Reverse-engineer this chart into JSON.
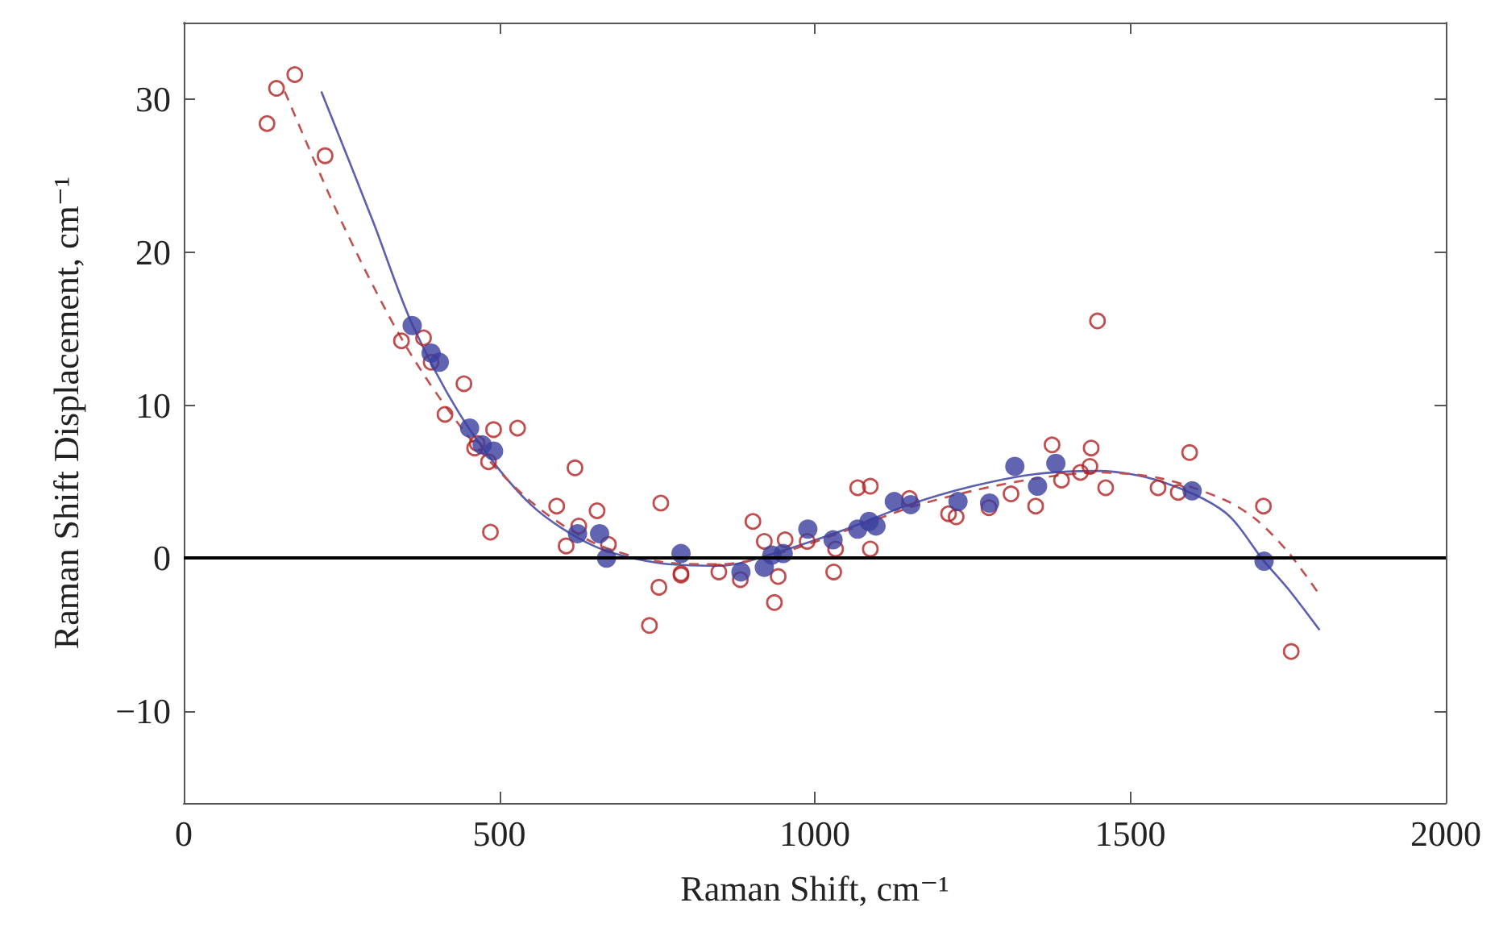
{
  "chart_data": {
    "type": "scatter",
    "xlabel": "Raman Shift, cm⁻¹",
    "ylabel": "Raman Shift Displacement, cm⁻¹",
    "xlim": [
      0,
      2000
    ],
    "xticks": [
      0,
      500,
      1000,
      1500,
      2000
    ],
    "ylim": [
      -16,
      35
    ],
    "yticks": [
      {
        "value": -10,
        "label": "−10"
      },
      0,
      10,
      20,
      30
    ],
    "grid": false,
    "ref_lines": [
      {
        "axis": "y",
        "value": 0,
        "color": "#000000",
        "line_style": "solid"
      }
    ],
    "series": [
      {
        "marker": "circle",
        "color": "#b22222",
        "x": [
          132,
          147,
          176,
          224,
          345,
          380,
          392,
          444,
          414,
          461,
          465,
          483,
          486,
          491,
          529,
          591,
          606,
          620,
          626,
          655,
          673,
          738,
          753,
          756,
          788,
          788,
          848,
          882,
          902,
          920,
          936,
          942,
          953,
          988,
          1030,
          1033,
          1068,
          1088,
          1088,
          1150,
          1212,
          1224,
          1276,
          1311,
          1350,
          1376,
          1391,
          1421,
          1438,
          1436,
          1448,
          1461,
          1544,
          1576,
          1594,
          1711,
          1755
        ],
        "values": [
          28.4,
          30.7,
          31.6,
          26.3,
          14.2,
          14.4,
          12.8,
          11.4,
          9.4,
          7.2,
          7.5,
          6.3,
          1.7,
          8.4,
          8.5,
          3.4,
          0.8,
          5.9,
          2.1,
          3.1,
          0.9,
          -4.4,
          -1.9,
          3.6,
          -1.0,
          -1.1,
          -0.9,
          -1.4,
          2.4,
          1.1,
          -2.9,
          -1.2,
          1.2,
          1.1,
          -0.9,
          0.6,
          4.6,
          4.7,
          0.6,
          3.9,
          2.9,
          2.7,
          3.3,
          4.2,
          3.4,
          7.4,
          5.1,
          5.6,
          7.2,
          6.0,
          15.5,
          4.6,
          4.6,
          4.3,
          6.9,
          3.4,
          -6.1
        ]
      },
      {
        "marker": "circle",
        "color": "#3a3f9e",
        "x": [
          362,
          392,
          405,
          453,
          473,
          491,
          624,
          659,
          670,
          788,
          883,
          920,
          932,
          950,
          989,
          1029,
          1068,
          1086,
          1097,
          1126,
          1152,
          1227,
          1277,
          1317,
          1353,
          1382,
          1598,
          1712
        ],
        "values": [
          15.2,
          13.4,
          12.8,
          8.5,
          7.4,
          7.0,
          1.6,
          1.6,
          0.0,
          0.3,
          -0.9,
          -0.6,
          0.2,
          0.3,
          1.9,
          1.2,
          1.9,
          2.4,
          2.1,
          3.7,
          3.5,
          3.7,
          3.6,
          6.0,
          4.7,
          6.2,
          4.4,
          -0.2
        ]
      },
      {
        "type": "line",
        "marker": "none",
        "line_style": "solid",
        "color": "#5a5fb0",
        "x": [
          218,
          300,
          363,
          450,
          550,
          650,
          750,
          850,
          950,
          1050,
          1150,
          1250,
          1350,
          1450,
          1550,
          1650,
          1712,
          1750,
          1800
        ],
        "values": [
          30.5,
          22,
          15.2,
          8.6,
          3.5,
          0.8,
          -0.3,
          -0.5,
          0.5,
          1.9,
          3.5,
          4.7,
          5.5,
          5.7,
          5.0,
          3.0,
          -0.2,
          -2.0,
          -4.7
        ]
      },
      {
        "type": "line",
        "marker": "none",
        "line_style": "dashed",
        "color": "#c0504d",
        "x": [
          160,
          250,
          350,
          450,
          550,
          650,
          750,
          850,
          950,
          1050,
          1150,
          1250,
          1350,
          1450,
          1550,
          1650,
          1700,
          1750,
          1800
        ],
        "values": [
          30.5,
          22,
          14,
          8,
          3.7,
          1.0,
          -0.2,
          -0.4,
          0.4,
          1.8,
          3.3,
          4.4,
          5.2,
          5.6,
          5.2,
          3.8,
          2.5,
          0.4,
          -2.4
        ]
      }
    ]
  }
}
